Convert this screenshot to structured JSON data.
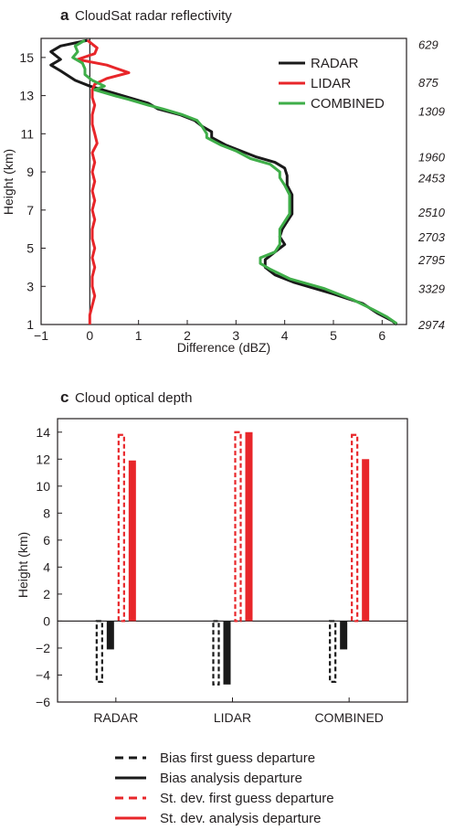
{
  "chart_data": [
    {
      "panel": "a",
      "title": "CloudSat radar reflectivity",
      "type": "line",
      "xlabel": "Difference (dBZ)",
      "ylabel": "Height (km)",
      "xlim": [
        -1,
        6.5
      ],
      "ylim": [
        1,
        16
      ],
      "xticks": [
        "−1",
        "0",
        "1",
        "2",
        "3",
        "4",
        "5",
        "6"
      ],
      "yticks": [
        "1",
        "3",
        "5",
        "7",
        "9",
        "11",
        "13",
        "15"
      ],
      "zero_line": true,
      "legend_position": "top-right",
      "right_labels": [
        {
          "y": 15.7,
          "text": "629"
        },
        {
          "y": 13.7,
          "text": "875"
        },
        {
          "y": 12.2,
          "text": "1309"
        },
        {
          "y": 9.8,
          "text": "1960"
        },
        {
          "y": 8.7,
          "text": "2453"
        },
        {
          "y": 6.9,
          "text": "2510"
        },
        {
          "y": 5.6,
          "text": "2703"
        },
        {
          "y": 4.4,
          "text": "2795"
        },
        {
          "y": 2.9,
          "text": "3329"
        },
        {
          "y": 1.0,
          "text": "2974"
        }
      ],
      "series": [
        {
          "name": "RADAR",
          "color": "#1a1a1a",
          "points": [
            [
              -0.05,
              15.9
            ],
            [
              -0.6,
              15.6
            ],
            [
              -0.8,
              15.3
            ],
            [
              -0.6,
              14.9
            ],
            [
              -0.8,
              14.6
            ],
            [
              -0.6,
              14.3
            ],
            [
              -0.3,
              13.8
            ],
            [
              0,
              13.5
            ],
            [
              0.4,
              13.2
            ],
            [
              0.8,
              12.9
            ],
            [
              1.2,
              12.6
            ],
            [
              1.4,
              12.3
            ],
            [
              1.85,
              12.0
            ],
            [
              2.15,
              11.7
            ],
            [
              2.3,
              11.4
            ],
            [
              2.5,
              11.1
            ],
            [
              2.5,
              10.8
            ],
            [
              2.8,
              10.4
            ],
            [
              3.1,
              10.1
            ],
            [
              3.4,
              9.8
            ],
            [
              3.8,
              9.5
            ],
            [
              4.0,
              9.2
            ],
            [
              4.05,
              8.8
            ],
            [
              4.05,
              8.3
            ],
            [
              4.15,
              7.8
            ],
            [
              4.15,
              7.3
            ],
            [
              4.15,
              6.8
            ],
            [
              4.05,
              6.4
            ],
            [
              3.95,
              6.0
            ],
            [
              3.9,
              5.6
            ],
            [
              4.0,
              5.2
            ],
            [
              3.8,
              4.8
            ],
            [
              3.6,
              4.4
            ],
            [
              3.6,
              4.0
            ],
            [
              3.8,
              3.6
            ],
            [
              4.2,
              3.2
            ],
            [
              5.0,
              2.6
            ],
            [
              5.6,
              2.1
            ],
            [
              5.9,
              1.6
            ],
            [
              6.2,
              1.2
            ],
            [
              6.3,
              1.0
            ]
          ]
        },
        {
          "name": "LIDAR",
          "color": "#e8262a",
          "points": [
            [
              -0.05,
              15.9
            ],
            [
              0.15,
              15.5
            ],
            [
              0.1,
              15.2
            ],
            [
              -0.25,
              14.9
            ],
            [
              0.35,
              14.6
            ],
            [
              0.8,
              14.2
            ],
            [
              0.35,
              13.9
            ],
            [
              0.1,
              13.6
            ],
            [
              0.05,
              13.3
            ],
            [
              0.05,
              12.9
            ],
            [
              0.1,
              12.5
            ],
            [
              0.05,
              12.0
            ],
            [
              0.05,
              11.5
            ],
            [
              0.1,
              11.0
            ],
            [
              0.15,
              10.5
            ],
            [
              0.05,
              10.0
            ],
            [
              0.1,
              9.5
            ],
            [
              0.05,
              9.0
            ],
            [
              0.1,
              8.5
            ],
            [
              0.05,
              8.0
            ],
            [
              0.1,
              7.5
            ],
            [
              0.05,
              7.0
            ],
            [
              0.1,
              6.5
            ],
            [
              0.05,
              6.0
            ],
            [
              0.05,
              5.5
            ],
            [
              0.1,
              5.0
            ],
            [
              0.05,
              4.5
            ],
            [
              0.1,
              4.0
            ],
            [
              0.05,
              3.5
            ],
            [
              0.05,
              3.0
            ],
            [
              0.1,
              2.5
            ],
            [
              0.05,
              2.0
            ],
            [
              0.0,
              1.5
            ],
            [
              0.0,
              1.0
            ]
          ]
        },
        {
          "name": "COMBINED",
          "color": "#3fae49",
          "points": [
            [
              -0.1,
              15.9
            ],
            [
              -0.3,
              15.6
            ],
            [
              -0.25,
              15.3
            ],
            [
              -0.35,
              15.0
            ],
            [
              -0.15,
              14.7
            ],
            [
              -0.1,
              14.4
            ],
            [
              -0.1,
              14.1
            ],
            [
              0.05,
              13.8
            ],
            [
              0.3,
              13.5
            ],
            [
              0.1,
              13.3
            ],
            [
              0.5,
              13.0
            ],
            [
              0.8,
              12.8
            ],
            [
              1.2,
              12.5
            ],
            [
              1.5,
              12.3
            ],
            [
              1.9,
              12.0
            ],
            [
              2.2,
              11.7
            ],
            [
              2.3,
              11.4
            ],
            [
              2.4,
              11.0
            ],
            [
              2.4,
              10.8
            ],
            [
              2.7,
              10.4
            ],
            [
              3.0,
              10.1
            ],
            [
              3.3,
              9.7
            ],
            [
              3.7,
              9.4
            ],
            [
              3.9,
              9.0
            ],
            [
              3.9,
              8.7
            ],
            [
              4.0,
              8.3
            ],
            [
              4.1,
              7.8
            ],
            [
              4.1,
              7.3
            ],
            [
              4.1,
              6.8
            ],
            [
              4.0,
              6.4
            ],
            [
              3.9,
              6.0
            ],
            [
              3.9,
              5.6
            ],
            [
              3.9,
              5.2
            ],
            [
              3.8,
              4.8
            ],
            [
              3.5,
              4.5
            ],
            [
              3.5,
              4.2
            ],
            [
              3.7,
              3.9
            ],
            [
              4.1,
              3.4
            ],
            [
              4.8,
              2.9
            ],
            [
              5.4,
              2.3
            ],
            [
              5.8,
              1.8
            ],
            [
              6.1,
              1.4
            ],
            [
              6.3,
              1.05
            ]
          ]
        }
      ]
    },
    {
      "panel": "c",
      "title": "Cloud optical depth",
      "type": "bar",
      "xlabel": "",
      "ylabel": "Height (km)",
      "ylim": [
        -6,
        15
      ],
      "yticks": [
        "−6",
        "−4",
        "−2",
        "0",
        "2",
        "4",
        "6",
        "8",
        "10",
        "12",
        "14"
      ],
      "categories": [
        "RADAR",
        "LIDAR",
        "COMBINED"
      ],
      "legend_position": "bottom",
      "series": [
        {
          "name": "Bias first guess departure",
          "color": "#1a1a1a",
          "style": "dashed",
          "values": [
            -4.5,
            -4.7,
            -4.5
          ]
        },
        {
          "name": "Bias analysis departure",
          "color": "#1a1a1a",
          "style": "solid",
          "values": [
            -2.1,
            -4.7,
            -2.1
          ]
        },
        {
          "name": "St. dev. first guess departure",
          "color": "#e8262a",
          "style": "dashed",
          "values": [
            13.8,
            14.0,
            13.8
          ]
        },
        {
          "name": "St. dev. analysis departure",
          "color": "#e8262a",
          "style": "solid",
          "values": [
            11.9,
            14.0,
            12.0
          ]
        }
      ]
    }
  ]
}
